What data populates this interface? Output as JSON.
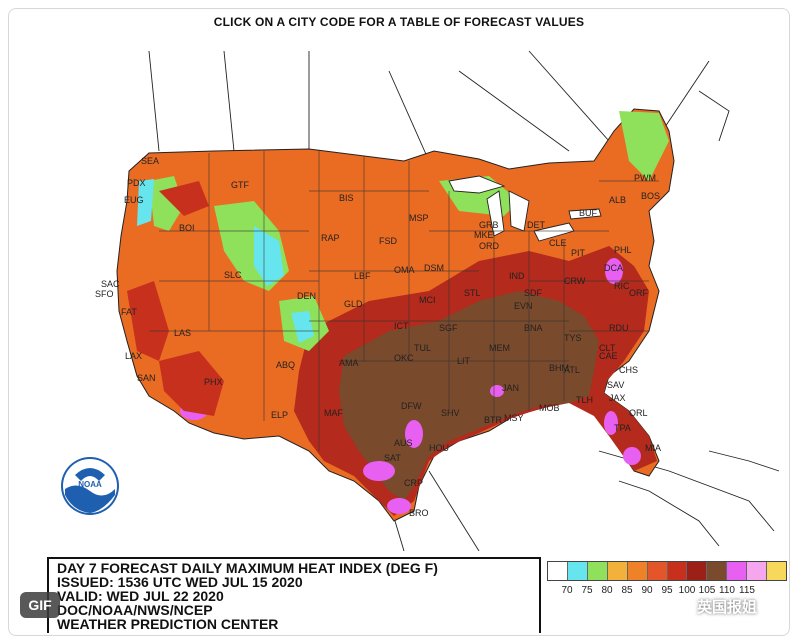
{
  "header": {
    "instruction": "CLICK ON A CITY CODE FOR A TABLE OF FORECAST VALUES"
  },
  "title_block": {
    "line1": "DAY 7 FORECAST DAILY MAXIMUM HEAT INDEX (DEG F)",
    "line2": "ISSUED: 1536 UTC WED JUL 15 2020",
    "line3": "VALID: WED JUL 22 2020",
    "line4": "DOC/NOAA/NWS/NCEP",
    "line5": "WEATHER PREDICTION CENTER"
  },
  "logo": {
    "text": "NOAA"
  },
  "legend": {
    "colors": [
      "#ffffff",
      "#66e5ef",
      "#8fe05a",
      "#f2b13a",
      "#ef8129",
      "#e4552a",
      "#c8301e",
      "#9c1f18",
      "#7a4a2c",
      "#e860f2",
      "#f6a6ef",
      "#f7d85a"
    ],
    "labels": [
      "70",
      "75",
      "80",
      "85",
      "90",
      "95",
      "100",
      "105",
      "110",
      "115"
    ]
  },
  "cities": [
    "SEA",
    "PDX",
    "EUG",
    "GTF",
    "BIS",
    "MSP",
    "GRB",
    "DET",
    "BUF",
    "ALB",
    "PWM",
    "BOS",
    "BOI",
    "SAC",
    "SFO",
    "FAT",
    "LAS",
    "LAX",
    "SAN",
    "PHX",
    "SLC",
    "DEN",
    "RAP",
    "FSD",
    "OMA",
    "DSM",
    "MKE",
    "ORD",
    "IND",
    "CLE",
    "PIT",
    "PHL",
    "DCA",
    "RIC",
    "ORF",
    "CRW",
    "SDF",
    "STL",
    "MCI",
    "LBF",
    "GLD",
    "ICT",
    "TUL",
    "OKC",
    "ABQ",
    "ELP",
    "MAF",
    "AMA",
    "DFW",
    "SHV",
    "LIT",
    "MEM",
    "BNA",
    "ATL",
    "CLT",
    "RDU",
    "CAE",
    "CHS",
    "SAV",
    "JAX",
    "TLH",
    "ORL",
    "TPA",
    "MIA",
    "MSY",
    "MOB",
    "BTR",
    "JAN",
    "BHM",
    "HOU",
    "AUS",
    "SAT",
    "CRP",
    "BRO",
    "EVN",
    "SGF",
    "TYS"
  ],
  "overlays": {
    "gif_badge": "GIF",
    "watermark": "英国报姐"
  }
}
